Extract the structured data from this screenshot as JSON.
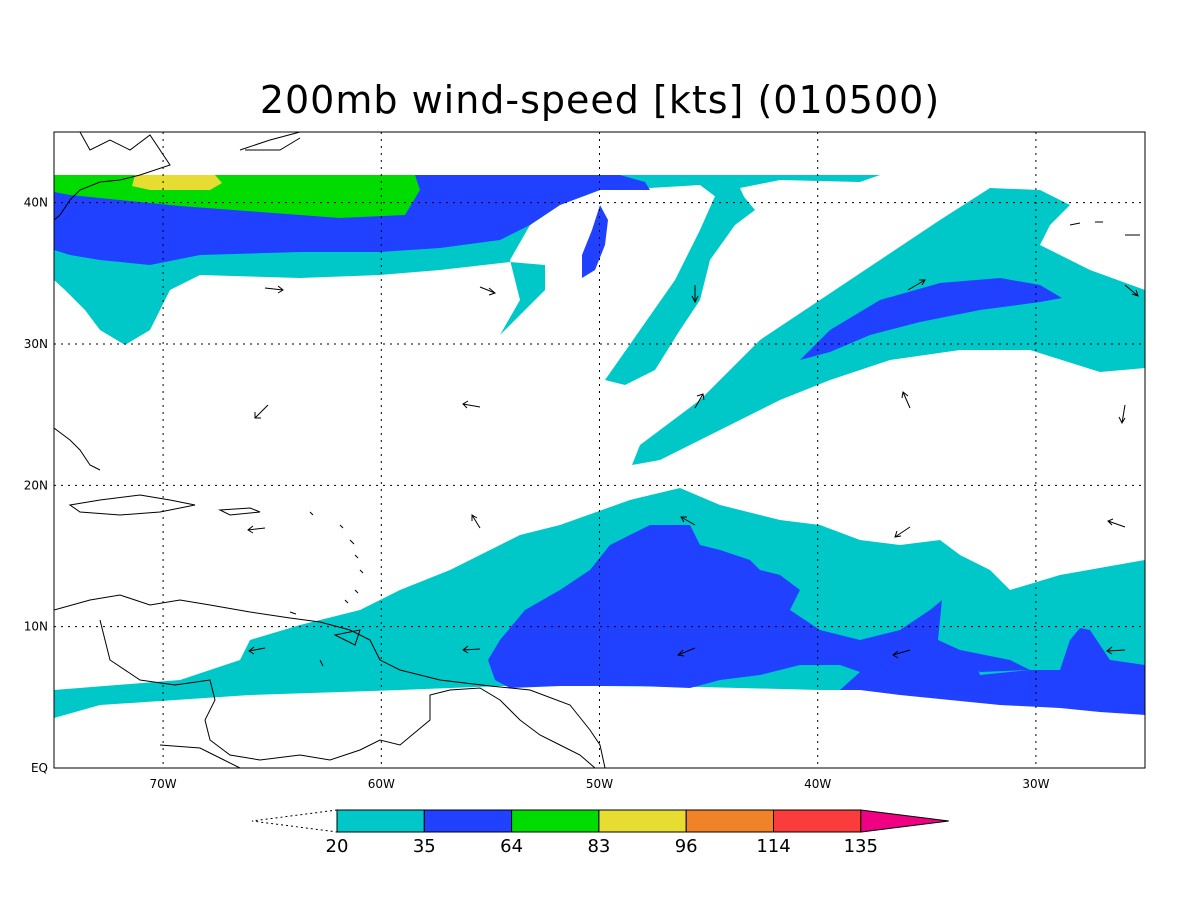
{
  "title": "200mb wind-speed [kts] (010500)",
  "map": {
    "lon_range": [
      -75,
      -25
    ],
    "lat_range": [
      0,
      45
    ],
    "lon_ticks": [
      {
        "value": -70,
        "label": "70W"
      },
      {
        "value": -60,
        "label": "60W"
      },
      {
        "value": -50,
        "label": "50W"
      },
      {
        "value": -40,
        "label": "40W"
      },
      {
        "value": -30,
        "label": "30W"
      }
    ],
    "lat_ticks": [
      {
        "value": 0,
        "label": "EQ"
      },
      {
        "value": 10,
        "label": "10N"
      },
      {
        "value": 20,
        "label": "20N"
      },
      {
        "value": 30,
        "label": "30N"
      },
      {
        "value": 40,
        "label": "40N"
      }
    ],
    "grid": "dotted"
  },
  "colorbar": {
    "levels": [
      "20",
      "35",
      "64",
      "83",
      "96",
      "114",
      "135"
    ],
    "colors": [
      "#00c8c8",
      "#2041ff",
      "#00dc00",
      "#e6dc32",
      "#f08228",
      "#fa3c3c",
      "#f00082"
    ],
    "under_color": "#ffffff"
  },
  "shading": {
    "band_20_35": "#00c8c8",
    "band_35_64": "#2041ff",
    "band_64_83": "#00dc00",
    "band_83_96": "#e6dc32"
  }
}
